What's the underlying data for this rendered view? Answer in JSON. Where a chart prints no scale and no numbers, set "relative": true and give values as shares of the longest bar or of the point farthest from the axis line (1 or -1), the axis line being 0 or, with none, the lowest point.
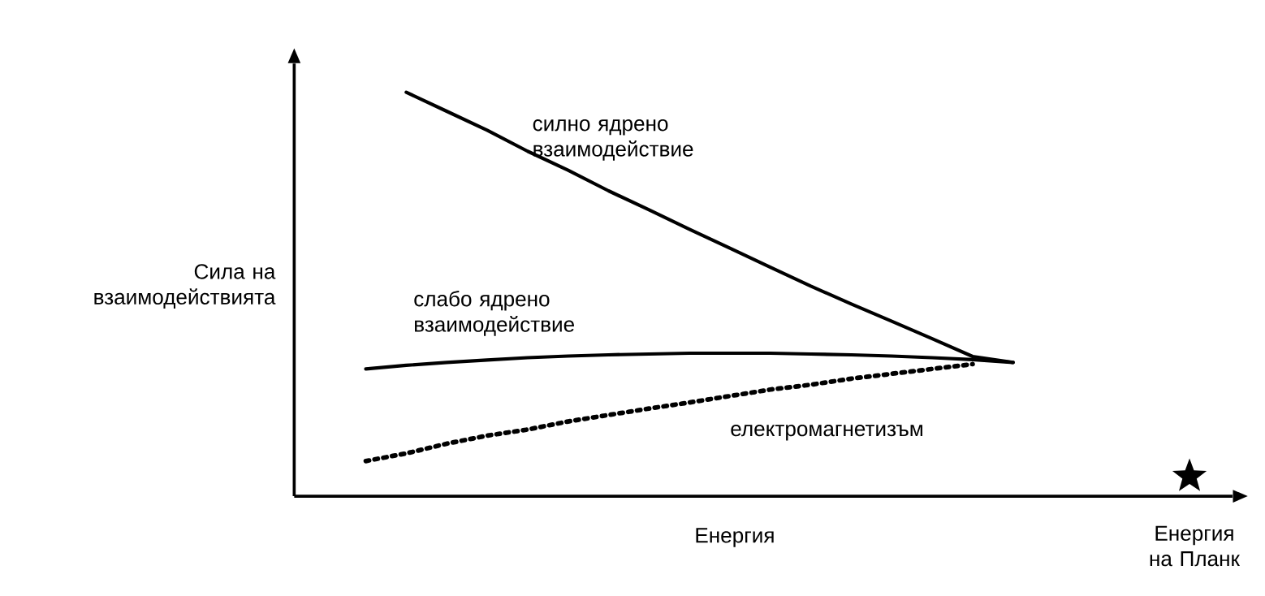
{
  "chart_data": {
    "type": "line",
    "relative": true,
    "xlabel": "Енергия",
    "ylabel": "Сила на взаимодействията",
    "categories": [
      null,
      null,
      null,
      null,
      null,
      null,
      null,
      null,
      null,
      null,
      null,
      null,
      null,
      null,
      null,
      null,
      null
    ],
    "series": [
      {
        "name": "силно ядрено взаимодействие",
        "color": "#000000",
        "line_style": "solid",
        "values": [
          null,
          1.0,
          0.953,
          0.906,
          0.854,
          0.807,
          0.756,
          0.709,
          0.661,
          0.614,
          0.567,
          0.52,
          0.476,
          0.433,
          0.39,
          0.346,
          0.331
        ]
      },
      {
        "name": "слабо ядрено взаимодействие",
        "color": "#000000",
        "line_style": "solid",
        "values": [
          0.315,
          0.324,
          0.331,
          0.337,
          0.343,
          0.347,
          0.35,
          0.352,
          0.354,
          0.354,
          0.354,
          0.352,
          0.35,
          0.347,
          0.343,
          0.338,
          0.331
        ]
      },
      {
        "name": "електромагнетизъм",
        "color": "#000000",
        "line_style": "dotted",
        "values": [
          0.087,
          0.106,
          0.13,
          0.15,
          0.165,
          0.185,
          0.201,
          0.217,
          0.232,
          0.248,
          0.264,
          0.276,
          0.291,
          0.303,
          0.315,
          0.327,
          null
        ]
      }
    ],
    "annotations": [
      "Енергия на Планк"
    ]
  }
}
